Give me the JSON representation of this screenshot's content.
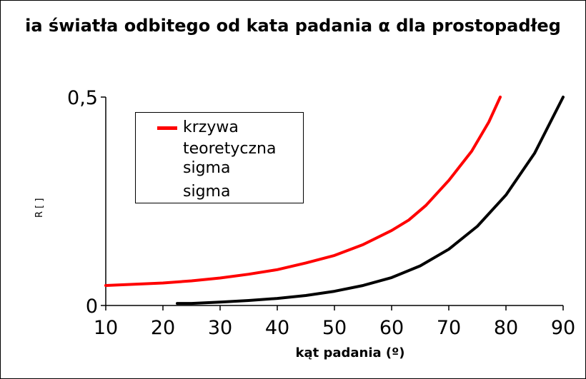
{
  "chart_data": {
    "type": "line",
    "title": "ia światła odbitego od kata padania α dla prostopadłeg",
    "xlabel": "kąt padania (º)",
    "ylabel": "R [ ]",
    "xlim": [
      10,
      90
    ],
    "ylim": [
      0,
      0.5
    ],
    "x_ticks": [
      "10",
      "20",
      "30",
      "40",
      "50",
      "60",
      "70",
      "80",
      "90"
    ],
    "y_ticks": [
      "0",
      "0,5"
    ],
    "grid": false,
    "legend_position": "upper-left",
    "legend": [
      {
        "label": "krzywa teoretyczna",
        "color": "#ff0000"
      },
      {
        "label": "sigma",
        "color": "#ff0000"
      },
      {
        "label": "sigma",
        "color": "#000000"
      }
    ],
    "series": [
      {
        "name": "krzywa teoretyczna",
        "color": "#ff0000",
        "x": [
          10,
          15,
          20,
          25,
          30,
          35,
          40,
          45,
          50,
          55,
          60,
          63,
          66,
          70,
          74,
          77,
          79
        ],
        "y": [
          0.048,
          0.051,
          0.054,
          0.059,
          0.066,
          0.075,
          0.086,
          0.102,
          0.12,
          0.146,
          0.18,
          0.205,
          0.24,
          0.3,
          0.37,
          0.44,
          0.5
        ]
      },
      {
        "name": "sigma",
        "color": "#000000",
        "x": [
          22.5,
          25,
          30,
          35,
          40,
          45,
          50,
          55,
          60,
          65,
          70,
          75,
          80,
          85,
          90
        ],
        "y": [
          0.005,
          0.005,
          0.008,
          0.012,
          0.017,
          0.024,
          0.034,
          0.048,
          0.067,
          0.095,
          0.135,
          0.19,
          0.265,
          0.365,
          0.5
        ]
      }
    ]
  }
}
